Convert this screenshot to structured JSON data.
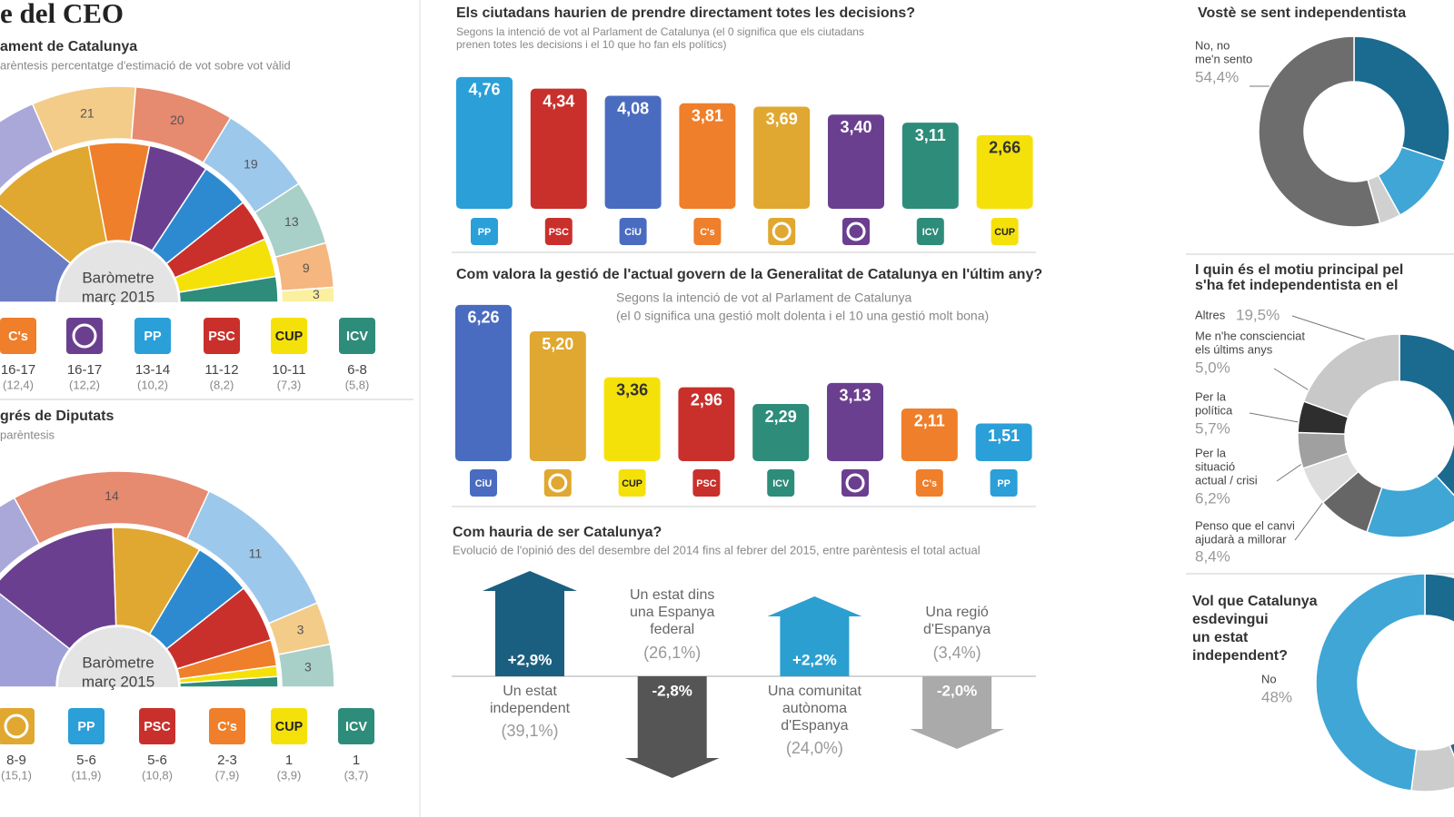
{
  "header": {
    "title": "e del CEO"
  },
  "parliament": {
    "title": "ament de Catalunya",
    "subtitle": "arèntesis percentatge d'estimació de vot sobre vot vàlid",
    "center_label": [
      "Baròmetre",
      "març 2015"
    ],
    "outer": [
      {
        "value": 50,
        "color": "#aaa8d8"
      },
      {
        "value": 21,
        "color": "#f3cc8a"
      },
      {
        "value": 20,
        "color": "#e68a70"
      },
      {
        "value": 19,
        "color": "#9cc8ec"
      },
      {
        "value": 13,
        "color": "#a8d0c8"
      },
      {
        "value": 9,
        "color": "#f5b680"
      },
      {
        "value": 3,
        "color": "#fbf0a0"
      }
    ],
    "inner": [
      {
        "value": 29.5,
        "color": "#6a7cc4"
      },
      {
        "value": 30,
        "color": "#e0a830"
      },
      {
        "value": 16.5,
        "color": "#ef7f2a"
      },
      {
        "value": 16.5,
        "color": "#6b3f8f"
      },
      {
        "value": 13.5,
        "color": "#2d8ad0"
      },
      {
        "value": 11.5,
        "color": "#c9302c"
      },
      {
        "value": 10.5,
        "color": "#f5e10a"
      },
      {
        "value": 7,
        "color": "#2e8c7a"
      }
    ],
    "parties": [
      {
        "logo": "C's",
        "color": "#ef7f2a",
        "seats": "16-17",
        "vote": "(12,4)"
      },
      {
        "logo": null,
        "color": "#6b3f8f",
        "seats": "16-17",
        "vote": "(12,2)"
      },
      {
        "logo": "PP",
        "color": "#2a9fd8",
        "seats": "13-14",
        "vote": "(10,2)"
      },
      {
        "logo": "PSC",
        "color": "#c9302c",
        "seats": "11-12",
        "vote": "(8,2)"
      },
      {
        "logo": "CUP",
        "color": "#f5e10a",
        "seats": "10-11",
        "vote": "(7,3)"
      },
      {
        "logo": "ICV",
        "color": "#2e8c7a",
        "seats": "6-8",
        "vote": "(5,8)"
      }
    ]
  },
  "congress": {
    "title": "grés de Diputats",
    "subtitle": "parèntesis",
    "center_label": [
      "Baròmetre",
      "març 2015"
    ],
    "outer": [
      {
        "value": 16,
        "color": "#aaa8d8"
      },
      {
        "value": 14,
        "color": "#e68a70"
      },
      {
        "value": 11,
        "color": "#9cc8ec"
      },
      {
        "value": 3,
        "color": "#f3cc8a"
      },
      {
        "value": 3,
        "color": "#a8d0c8"
      }
    ],
    "inner": [
      {
        "value": 10,
        "color": "#a0a0d8"
      },
      {
        "value": 13,
        "color": "#6b3f8f"
      },
      {
        "value": 8.5,
        "color": "#e0a830"
      },
      {
        "value": 5.5,
        "color": "#2d8ad0"
      },
      {
        "value": 5.5,
        "color": "#c9302c"
      },
      {
        "value": 2.5,
        "color": "#ef7f2a"
      },
      {
        "value": 1,
        "color": "#f5e10a"
      },
      {
        "value": 1,
        "color": "#2e8c7a"
      }
    ],
    "parties": [
      {
        "logo": null,
        "color": "#e0a830",
        "seats": "8-9",
        "vote": "(15,1)"
      },
      {
        "logo": "PP",
        "color": "#2a9fd8",
        "seats": "5-6",
        "vote": "(11,9)"
      },
      {
        "logo": "PSC",
        "color": "#c9302c",
        "seats": "5-6",
        "vote": "(10,8)"
      },
      {
        "logo": "C's",
        "color": "#ef7f2a",
        "seats": "2-3",
        "vote": "(7,9)"
      },
      {
        "logo": "CUP",
        "color": "#f5e10a",
        "seats": "1",
        "vote": "(3,9)"
      },
      {
        "logo": "ICV",
        "color": "#2e8c7a",
        "seats": "1",
        "vote": "(3,7)"
      }
    ]
  },
  "chart_data": [
    {
      "type": "bar",
      "title": "Els ciutadans haurien de prendre directament totes les decisions?",
      "subtitle": [
        "Segons la intenció de vot al Parlament de Catalunya (el 0 significa que els ciutadans",
        "prenen totes les decisions i el 10 que ho fan els polítics)"
      ],
      "categories": [
        "PP",
        "PSC",
        "CiU",
        "C's",
        null,
        null,
        "ICV",
        "CUP"
      ],
      "values": [
        4.76,
        4.34,
        4.08,
        3.81,
        3.69,
        3.4,
        3.11,
        2.66
      ],
      "value_labels": [
        "4,76",
        "4,34",
        "4,08",
        "3,81",
        "3,69",
        "3,40",
        "3,11",
        "2,66"
      ],
      "colors": [
        "#2a9fd8",
        "#c9302c",
        "#4a6cc0",
        "#ef7f2a",
        "#e0a830",
        "#6b3f8f",
        "#2e8c7a",
        "#f5e10a"
      ]
    },
    {
      "type": "bar",
      "title": "Com valora la gestió de l'actual govern de la Generalitat de Catalunya en l'últim any?",
      "subtitle": [
        "Segons la intenció de vot al Parlament de Catalunya",
        "(el 0 significa una gestió molt dolenta i el 10 una gestió molt bona)"
      ],
      "categories": [
        "CiU",
        null,
        "CUP",
        "PSC",
        "ICV",
        null,
        "C's",
        "PP"
      ],
      "values": [
        6.26,
        5.2,
        3.36,
        2.96,
        2.29,
        3.13,
        2.11,
        1.51
      ],
      "value_labels": [
        "6,26",
        "5,20",
        "3,36",
        "2,96",
        "2,29",
        "3,13",
        "2,11",
        "1,51"
      ],
      "colors": [
        "#4a6cc0",
        "#e0a830",
        "#f5e10a",
        "#c9302c",
        "#2e8c7a",
        "#6b3f8f",
        "#ef7f2a",
        "#2a9fd8"
      ]
    },
    {
      "type": "arrow",
      "title": "Com hauria de ser Catalunya?",
      "subtitle": "Evolució de l'opinió des del desembre del 2014 fins al febrer del 2015, entre parèntesis el total actual",
      "categories": [
        [
          "Un estat",
          "independent"
        ],
        [
          "Un estat dins",
          "una Espanya",
          "federal"
        ],
        [
          "Una comunitat",
          "autònoma",
          "d'Espanya"
        ],
        [
          "Una regió",
          "d'Espanya"
        ]
      ],
      "values": [
        2.9,
        -2.8,
        2.2,
        -2.0
      ],
      "value_labels": [
        "+2,9%",
        "-2,8%",
        "+2,2%",
        "-2,0%"
      ],
      "totals": [
        39.1,
        26.1,
        24.0,
        3.4
      ],
      "total_labels": [
        "(39,1%)",
        "(26,1%)",
        "(24,0%)",
        "(3,4%)"
      ],
      "colors": [
        "#1b5f80",
        "#555555",
        "#2b9fd0",
        "#aaaaaa"
      ]
    }
  ],
  "donuts": [
    {
      "title": [
        "Vostè se sent independentista"
      ],
      "slices": [
        {
          "value": 30,
          "color": "#1b6a90"
        },
        {
          "value": 12,
          "color": "#3fa6d6"
        },
        {
          "value": 3.6,
          "color": "#d0d0d0"
        },
        {
          "name": [
            "No, no",
            "me'n sento"
          ],
          "value": 54.4,
          "value_label": "54,4%",
          "color": "#6d6d6d"
        }
      ]
    },
    {
      "title": [
        "I quin és el motiu principal pel",
        "s'ha fet independentista en el"
      ],
      "slices": [
        {
          "value": 38.2,
          "color": "#1b6a90"
        },
        {
          "value": 17,
          "color": "#3fa6d6"
        },
        {
          "name": [
            "Penso que el canvi",
            "ajudarà a millorar"
          ],
          "value": 8.4,
          "value_label": "8,4%",
          "color": "#666666"
        },
        {
          "name": [
            "Per la",
            "situació",
            "actual / crisi"
          ],
          "value": 6.2,
          "value_label": "6,2%",
          "color": "#dddddd"
        },
        {
          "name": [
            "Per la",
            "política"
          ],
          "value": 5.7,
          "value_label": "5,7%",
          "color": "#a0a0a0"
        },
        {
          "name": [
            "Me n'he conscienciat",
            "els últims anys"
          ],
          "value": 5.0,
          "value_label": "5,0%",
          "color": "#2e2e2e"
        },
        {
          "name": [
            "Altres"
          ],
          "value": 19.5,
          "value_label": "19,5%",
          "color": "#c8c8c8"
        }
      ]
    },
    {
      "title": [
        "Vol que Catalunya",
        "esdevingui",
        "un estat",
        "independent?"
      ],
      "slices": [
        {
          "value": 44,
          "color": "#1b6a90"
        },
        {
          "value": 8,
          "color": "#cccccc"
        },
        {
          "name": [
            "No"
          ],
          "value": 48,
          "value_label": "48%",
          "color": "#3fa6d6"
        }
      ]
    }
  ]
}
